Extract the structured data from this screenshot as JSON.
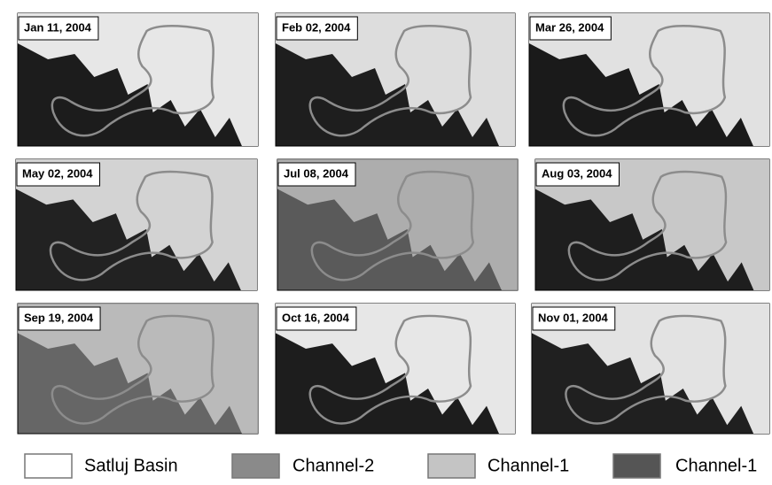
{
  "panels": [
    {
      "label": "Jan 11, 2004"
    },
    {
      "label": "Feb 02, 2004"
    },
    {
      "label": "Mar 26, 2004"
    },
    {
      "label": "May 02, 2004"
    },
    {
      "label": "Jul 08, 2004"
    },
    {
      "label": "Aug 03, 2004"
    },
    {
      "label": "Sep 19, 2004"
    },
    {
      "label": "Oct 16, 2004"
    },
    {
      "label": "Nov 01, 2004"
    }
  ],
  "legend": [
    {
      "label": "Satluj Basin"
    },
    {
      "label": "Channel-2"
    },
    {
      "label": "Channel-1"
    },
    {
      "label": "Channel-1"
    }
  ]
}
